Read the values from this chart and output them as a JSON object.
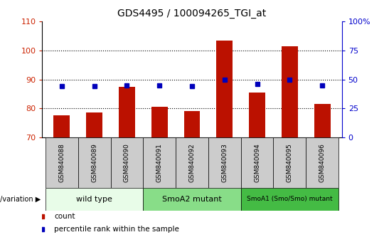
{
  "title": "GDS4495 / 100094265_TGI_at",
  "samples": [
    "GSM840088",
    "GSM840089",
    "GSM840090",
    "GSM840091",
    "GSM840092",
    "GSM840093",
    "GSM840094",
    "GSM840095",
    "GSM840096"
  ],
  "counts": [
    77.5,
    78.5,
    87.5,
    80.5,
    79.0,
    103.5,
    85.5,
    101.5,
    81.5
  ],
  "percentile_ranks": [
    44,
    44,
    45,
    45,
    44,
    50,
    46,
    50,
    45
  ],
  "ylim_left": [
    70,
    110
  ],
  "ylim_right": [
    0,
    100
  ],
  "yticks_left": [
    70,
    80,
    90,
    100,
    110
  ],
  "yticks_right": [
    0,
    25,
    50,
    75,
    100
  ],
  "ytick_labels_right": [
    "0",
    "25",
    "50",
    "75",
    "100%"
  ],
  "groups": [
    {
      "label": "wild type",
      "start": 0,
      "end": 3,
      "color": "#e8fce8"
    },
    {
      "label": "SmoA2 mutant",
      "start": 3,
      "end": 6,
      "color": "#88dd88"
    },
    {
      "label": "SmoA1 (Smo/Smo) mutant",
      "start": 6,
      "end": 9,
      "color": "#44bb44"
    }
  ],
  "bar_color": "#bb1100",
  "marker_color": "#0000bb",
  "grid_color": "#000000",
  "bg_color": "#ffffff",
  "plot_bg_color": "#ffffff",
  "tick_color_left": "#cc2200",
  "tick_color_right": "#0000cc",
  "legend_count_color": "#bb1100",
  "legend_pct_color": "#0000bb",
  "sample_bg_color": "#cccccc",
  "bar_width": 0.5
}
